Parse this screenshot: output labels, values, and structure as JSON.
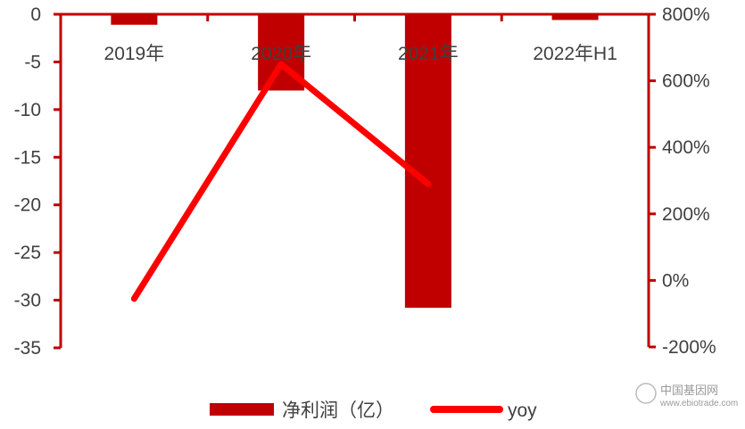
{
  "colors": {
    "axis": "#c00000",
    "bar": "#c00000",
    "line": "#ff0000",
    "text": "#404040"
  },
  "chart_data": {
    "type": "bar",
    "title": "",
    "categories": [
      "2019年",
      "2020年",
      "2021年",
      "2022年H1"
    ],
    "series": [
      {
        "name": "净利润（亿）",
        "type": "bar",
        "axis": "left",
        "values": [
          -1.1,
          -8.0,
          -30.8,
          -0.6
        ]
      },
      {
        "name": "yoy",
        "type": "line",
        "axis": "right",
        "values": [
          -55,
          650,
          290,
          null
        ]
      }
    ],
    "left_axis": {
      "ylim": [
        -35,
        0
      ],
      "ticks": [
        "0",
        "-5",
        "-10",
        "-15",
        "-20",
        "-25",
        "-30",
        "-35"
      ]
    },
    "right_axis": {
      "ylim": [
        -200,
        800
      ],
      "ticks": [
        "800%",
        "600%",
        "400%",
        "200%",
        "0%",
        "-200%"
      ]
    },
    "grid": false,
    "legend_position": "bottom"
  },
  "watermark": {
    "line1": "中国基因网",
    "line2": "www.ebiotrade.com"
  }
}
